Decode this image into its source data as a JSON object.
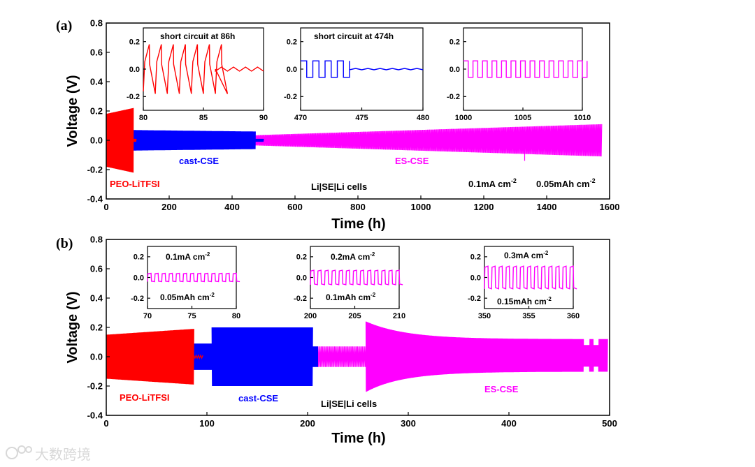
{
  "watermark": "大数跨境",
  "chart_data": [
    {
      "id": "a",
      "type": "line",
      "panel_label": "(a)",
      "xlabel": "Time (h)",
      "ylabel": "Voltage (V)",
      "xlim": [
        0,
        1600
      ],
      "ylim": [
        -0.4,
        0.8
      ],
      "xticks": [
        0,
        200,
        400,
        600,
        800,
        1000,
        1200,
        1400,
        1600
      ],
      "yticks": [
        -0.4,
        -0.2,
        0.0,
        0.2,
        0.4,
        0.6,
        0.8
      ],
      "xtick_labels": [
        "0",
        "200",
        "400",
        "600",
        "800",
        "1000",
        "1200",
        "1400",
        "1600"
      ],
      "ytick_labels": [
        "-0.4",
        "-0.2",
        "0.0",
        "0.2",
        "0.4",
        "0.6",
        "0.8"
      ],
      "series": [
        {
          "name": "PEO-LiTFSI",
          "color": "#ff0000",
          "t_start": 0,
          "t_end": 86,
          "amp_start": 0.18,
          "amp_end": 0.22,
          "short_circuit_at": 86,
          "tail_end": 95,
          "tail_amp": 0.01
        },
        {
          "name": "cast-CSE",
          "color": "#0000ff",
          "t_start": 86,
          "t_end": 474,
          "amp_start": 0.07,
          "amp_end": 0.06,
          "short_circuit_at": 474,
          "tail_end": 500,
          "tail_amp": 0.01
        },
        {
          "name": "ES-CSE",
          "color": "#ff00ff",
          "t_start": 474,
          "t_end": 1575,
          "amp_start": 0.035,
          "amp_end": 0.11
        }
      ],
      "series_labels": [
        {
          "text": "PEO-LiTFSI",
          "color": "#ff0000"
        },
        {
          "text": "cast-CSE",
          "color": "#0000ff"
        },
        {
          "text": "ES-CSE",
          "color": "#ff00ff"
        }
      ],
      "annotations": [
        {
          "text": "Li|SE|Li cells"
        },
        {
          "text": "0.1mA cm",
          "sup": "-2"
        },
        {
          "text": "0.05mAh cm",
          "sup": "-2"
        }
      ],
      "insets": [
        {
          "title": "short circuit at 86h",
          "color": "#ff0000",
          "xlim": [
            80,
            90
          ],
          "ylim": [
            -0.3,
            0.3
          ],
          "xticks": [
            80,
            85,
            90
          ],
          "yticks": [
            -0.2,
            0.0,
            0.2
          ],
          "xtick_labels": [
            "80",
            "85",
            "90"
          ],
          "ytick_labels": [
            "-0.2",
            "0.0",
            "0.2"
          ],
          "cycle_amp": 0.18,
          "period": 1.0,
          "short_at": 86,
          "post_amp": 0.015
        },
        {
          "title": "short circuit at 474h",
          "color": "#0000ff",
          "xlim": [
            470,
            480
          ],
          "ylim": [
            -0.3,
            0.3
          ],
          "xticks": [
            470,
            475,
            480
          ],
          "yticks": [
            -0.2,
            0.0,
            0.2
          ],
          "xtick_labels": [
            "470",
            "475",
            "480"
          ],
          "ytick_labels": [
            "-0.2",
            "0.0",
            "0.2"
          ],
          "cycle_amp": 0.06,
          "period": 1.0,
          "short_at": 474,
          "post_amp": 0.005
        },
        {
          "title": "",
          "color": "#ff00ff",
          "xlim": [
            1000,
            1010
          ],
          "ylim": [
            -0.3,
            0.3
          ],
          "xticks": [
            1000,
            1005,
            1010
          ],
          "yticks": [
            -0.2,
            0.0,
            0.2
          ],
          "xtick_labels": [
            "1000",
            "1005",
            "1010"
          ],
          "ytick_labels": [
            "-0.2",
            "0.0",
            "0.2"
          ],
          "cycle_amp": 0.06,
          "period": 0.8
        }
      ]
    },
    {
      "id": "b",
      "type": "line",
      "panel_label": "(b)",
      "xlabel": "Time (h)",
      "ylabel": "Voltage (V)",
      "xlim": [
        0,
        500
      ],
      "ylim": [
        -0.4,
        0.8
      ],
      "xticks": [
        0,
        100,
        200,
        300,
        400,
        500
      ],
      "yticks": [
        -0.4,
        -0.2,
        0.0,
        0.2,
        0.4,
        0.6,
        0.8
      ],
      "xtick_labels": [
        "0",
        "100",
        "200",
        "300",
        "400",
        "500"
      ],
      "ytick_labels": [
        "-0.4",
        "-0.2",
        "0.0",
        "0.2",
        "0.4",
        "0.6",
        "0.8"
      ],
      "series": [
        {
          "name": "PEO-LiTFSI",
          "color": "#ff0000",
          "t_start": 0,
          "t_end": 87,
          "amp_start": 0.15,
          "amp_end": 0.19,
          "tail_end": 96,
          "tail_amp": 0.01
        },
        {
          "name": "cast-CSE",
          "color": "#0000ff",
          "t_start": 87,
          "t_end": 210,
          "steps": [
            [
              87,
              105,
              0.09
            ],
            [
              105,
              205,
              0.2
            ],
            [
              205,
              210,
              0.07
            ]
          ]
        },
        {
          "name": "ES-CSE",
          "color": "#ff00ff",
          "t_start": 210,
          "t_end": 498,
          "steps": [
            [
              210,
              258,
              0.07
            ]
          ],
          "decay": {
            "t0": 258,
            "t1": 498,
            "amp_start": 0.24,
            "amp_end": 0.12
          }
        }
      ],
      "series_labels": [
        {
          "text": "PEO-LiTFSI",
          "color": "#ff0000"
        },
        {
          "text": "cast-CSE",
          "color": "#0000ff"
        },
        {
          "text": "ES-CSE",
          "color": "#ff00ff"
        }
      ],
      "annotations": [
        {
          "text": "Li|SE|Li cells"
        }
      ],
      "insets": [
        {
          "top": "0.1mA cm",
          "top_sup": "-2",
          "bottom": "0.05mAh cm",
          "bottom_sup": "-2",
          "color": "#ff00ff",
          "xlim": [
            70,
            80
          ],
          "ylim": [
            -0.3,
            0.3
          ],
          "xticks": [
            70,
            75,
            80
          ],
          "yticks": [
            -0.2,
            0.0,
            0.2
          ],
          "xtick_labels": [
            "70",
            "75",
            "80"
          ],
          "ytick_labels": [
            "-0.2",
            "0.0",
            "0.2"
          ],
          "cycle_amp": 0.04,
          "period": 0.8
        },
        {
          "top": "0.2mA cm",
          "top_sup": "-2",
          "bottom": "0.1mAh cm",
          "bottom_sup": "-2",
          "color": "#ff00ff",
          "xlim": [
            200,
            210
          ],
          "ylim": [
            -0.3,
            0.3
          ],
          "xticks": [
            200,
            205,
            210
          ],
          "yticks": [
            -0.2,
            0.0,
            0.2
          ],
          "xtick_labels": [
            "200",
            "205",
            "210"
          ],
          "ytick_labels": [
            "-0.2",
            "0.0",
            "0.2"
          ],
          "cycle_amp": 0.07,
          "period": 0.8
        },
        {
          "top": "0.3mA cm",
          "top_sup": "-2",
          "bottom": "0.15mAh cm",
          "bottom_sup": "-2",
          "color": "#ff00ff",
          "xlim": [
            350,
            360
          ],
          "ylim": [
            -0.3,
            0.3
          ],
          "xticks": [
            350,
            355,
            360
          ],
          "yticks": [
            -0.2,
            0.0,
            0.2
          ],
          "xtick_labels": [
            "350",
            "355",
            "360"
          ],
          "ytick_labels": [
            "-0.2",
            "0.0",
            "0.2"
          ],
          "cycle_amp": 0.11,
          "period": 0.8
        }
      ]
    }
  ]
}
